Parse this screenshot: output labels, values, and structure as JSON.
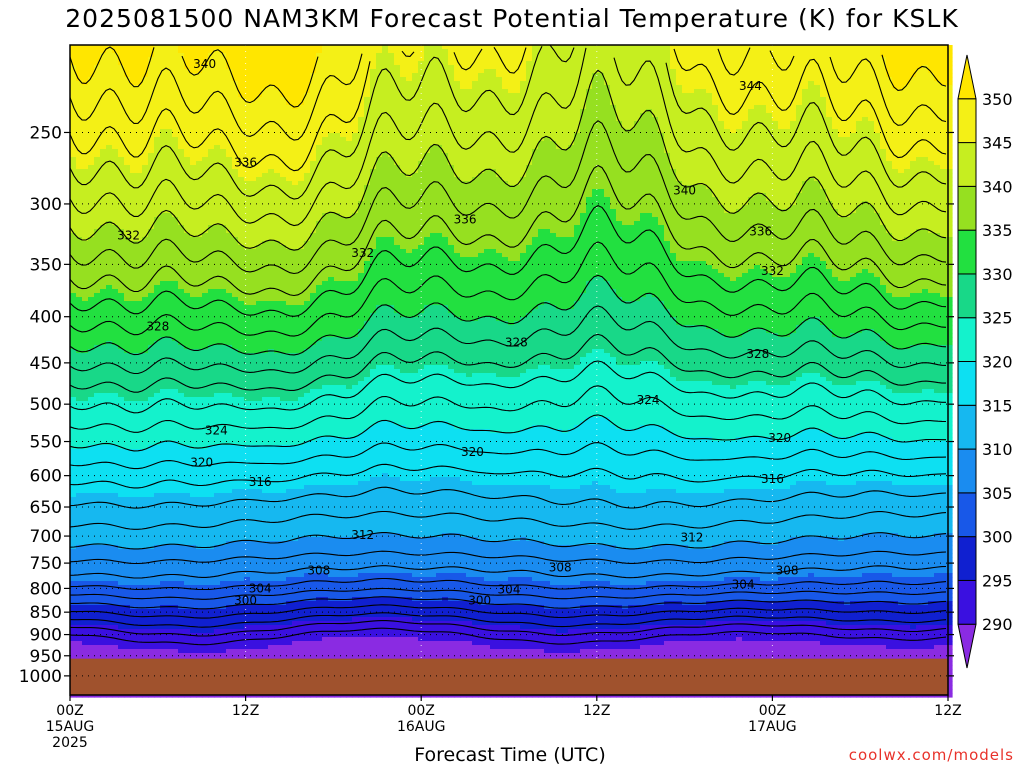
{
  "chart_data": {
    "type": "contour",
    "title": "2025081500 NAM3KM Forecast Potential Temperature (K) for KSLK",
    "xlabel": "Forecast Time (UTC)",
    "credit": "coolwx.com/models",
    "y_axis": {
      "scale": "pressure (log)",
      "ticks": [
        250,
        300,
        350,
        400,
        450,
        500,
        550,
        600,
        650,
        700,
        750,
        800,
        850,
        900,
        950,
        1000
      ],
      "range": [
        200,
        1050
      ]
    },
    "x_axis": {
      "range_hours": [
        0,
        60
      ],
      "ticks": [
        {
          "hour": 0,
          "lines": [
            "00Z",
            "15AUG",
            "2025"
          ]
        },
        {
          "hour": 12,
          "lines": [
            "12Z"
          ]
        },
        {
          "hour": 24,
          "lines": [
            "00Z",
            "16AUG"
          ]
        },
        {
          "hour": 36,
          "lines": [
            "12Z"
          ]
        },
        {
          "hour": 48,
          "lines": [
            "00Z",
            "17AUG"
          ]
        },
        {
          "hour": 60,
          "lines": [
            "12Z"
          ]
        }
      ]
    },
    "colorbar": {
      "levels": [
        290,
        295,
        300,
        305,
        310,
        315,
        320,
        325,
        330,
        335,
        340,
        345,
        350
      ],
      "colors": [
        "#8a2be2",
        "#3a10e0",
        "#1020d0",
        "#1858e8",
        "#1a8cf0",
        "#16b8f0",
        "#0de0f2",
        "#14f2cc",
        "#18d888",
        "#22e040",
        "#96e020",
        "#c6ee20",
        "#f4f016",
        "#ffe600"
      ]
    },
    "contour_labels": [
      {
        "value": 340,
        "hour": 9.2,
        "p": 210
      },
      {
        "value": 344,
        "hour": 46.5,
        "p": 222
      },
      {
        "value": 336,
        "hour": 12.0,
        "p": 270
      },
      {
        "value": 340,
        "hour": 42.0,
        "p": 290
      },
      {
        "value": 336,
        "hour": 27.0,
        "p": 312
      },
      {
        "value": 336,
        "hour": 47.2,
        "p": 322
      },
      {
        "value": 332,
        "hour": 4.0,
        "p": 325
      },
      {
        "value": 332,
        "hour": 20.0,
        "p": 340
      },
      {
        "value": 332,
        "hour": 48.0,
        "p": 356
      },
      {
        "value": 328,
        "hour": 6.0,
        "p": 410
      },
      {
        "value": 328,
        "hour": 30.5,
        "p": 427
      },
      {
        "value": 328,
        "hour": 47.0,
        "p": 440
      },
      {
        "value": 324,
        "hour": 39.5,
        "p": 495
      },
      {
        "value": 324,
        "hour": 10.0,
        "p": 535
      },
      {
        "value": 320,
        "hour": 27.5,
        "p": 565
      },
      {
        "value": 320,
        "hour": 48.5,
        "p": 545
      },
      {
        "value": 320,
        "hour": 9.0,
        "p": 580
      },
      {
        "value": 316,
        "hour": 13.0,
        "p": 610
      },
      {
        "value": 316,
        "hour": 48.0,
        "p": 605
      },
      {
        "value": 312,
        "hour": 20.0,
        "p": 698
      },
      {
        "value": 312,
        "hour": 42.5,
        "p": 703
      },
      {
        "value": 308,
        "hour": 17.0,
        "p": 764
      },
      {
        "value": 308,
        "hour": 33.5,
        "p": 758
      },
      {
        "value": 308,
        "hour": 49.0,
        "p": 764
      },
      {
        "value": 304,
        "hour": 13.0,
        "p": 800
      },
      {
        "value": 304,
        "hour": 30.0,
        "p": 802
      },
      {
        "value": 304,
        "hour": 46.0,
        "p": 792
      },
      {
        "value": 300,
        "hour": 12.0,
        "p": 825
      },
      {
        "value": 300,
        "hour": 28.0,
        "p": 825
      }
    ],
    "terrain": {
      "surface_p": 957,
      "color": "#a0522d"
    }
  }
}
